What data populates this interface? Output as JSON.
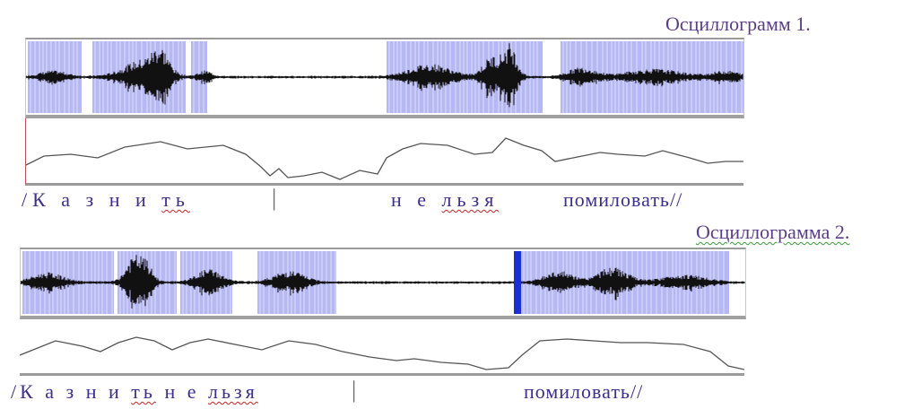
{
  "oscillogram1": {
    "title": "Осциллограмм 1.",
    "syllables": [
      {
        "text": "/К а з н и ",
        "squiggle": false
      },
      {
        "text": "ть",
        "squiggle": true
      }
    ],
    "separator": "|",
    "syllables2": [
      {
        "text": "н е ",
        "squiggle": false
      },
      {
        "text": "льзя",
        "squiggle": true
      }
    ],
    "last": "помиловать//",
    "colors": {
      "highlight": "#b6b8f4",
      "wave": "#111111",
      "baseline": "#3a8fa0",
      "envelope": "#555555"
    }
  },
  "oscillogram2": {
    "title": "Осциллограмма 2.",
    "syllables": [
      {
        "text": "/К а з н и ",
        "squiggle": false
      },
      {
        "text": "ть",
        "squiggle": true
      },
      {
        "text": " н е ",
        "squiggle": false
      },
      {
        "text": "льзя",
        "squiggle": true
      }
    ],
    "separator": "|",
    "last": "помиловать//",
    "colors": {
      "highlight": "#b6b8f4",
      "wave": "#111111",
      "baseline": "#3a8fa0",
      "envelope": "#555555",
      "cursor": "#1a2fd0"
    }
  }
}
